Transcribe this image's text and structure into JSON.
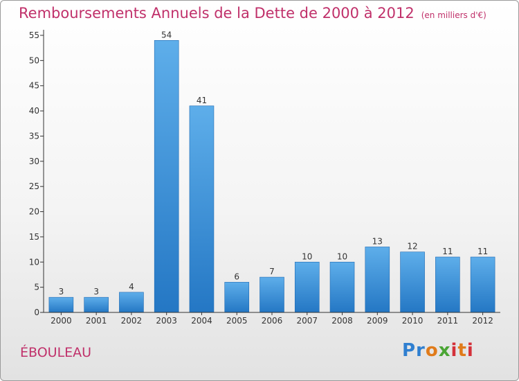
{
  "title": "Remboursements Annuels de la Dette de 2000 à 2012",
  "unit": "(en milliers d'€)",
  "town": "ÉBOULEAU",
  "logo": {
    "p1": "Pr",
    "p2": "o",
    "p3": "x",
    "p4": "i",
    "p5": "t",
    "p6": "i"
  },
  "colors": {
    "bar_light": "#5eaeea",
    "bar_dark": "#2477c4",
    "title": "#c0306a"
  },
  "chart_data": {
    "type": "bar",
    "title": "Remboursements Annuels de la Dette de 2000 à 2012",
    "categories": [
      "2000",
      "2001",
      "2002",
      "2003",
      "2004",
      "2005",
      "2006",
      "2007",
      "2008",
      "2009",
      "2010",
      "2011",
      "2012"
    ],
    "values": [
      3,
      3,
      4,
      54,
      41,
      6,
      7,
      10,
      10,
      13,
      12,
      11,
      11
    ],
    "ylim": [
      0,
      55
    ],
    "yticks": [
      0,
      5,
      10,
      15,
      20,
      25,
      30,
      35,
      40,
      45,
      50,
      55
    ],
    "grid": false,
    "legend": "none"
  }
}
